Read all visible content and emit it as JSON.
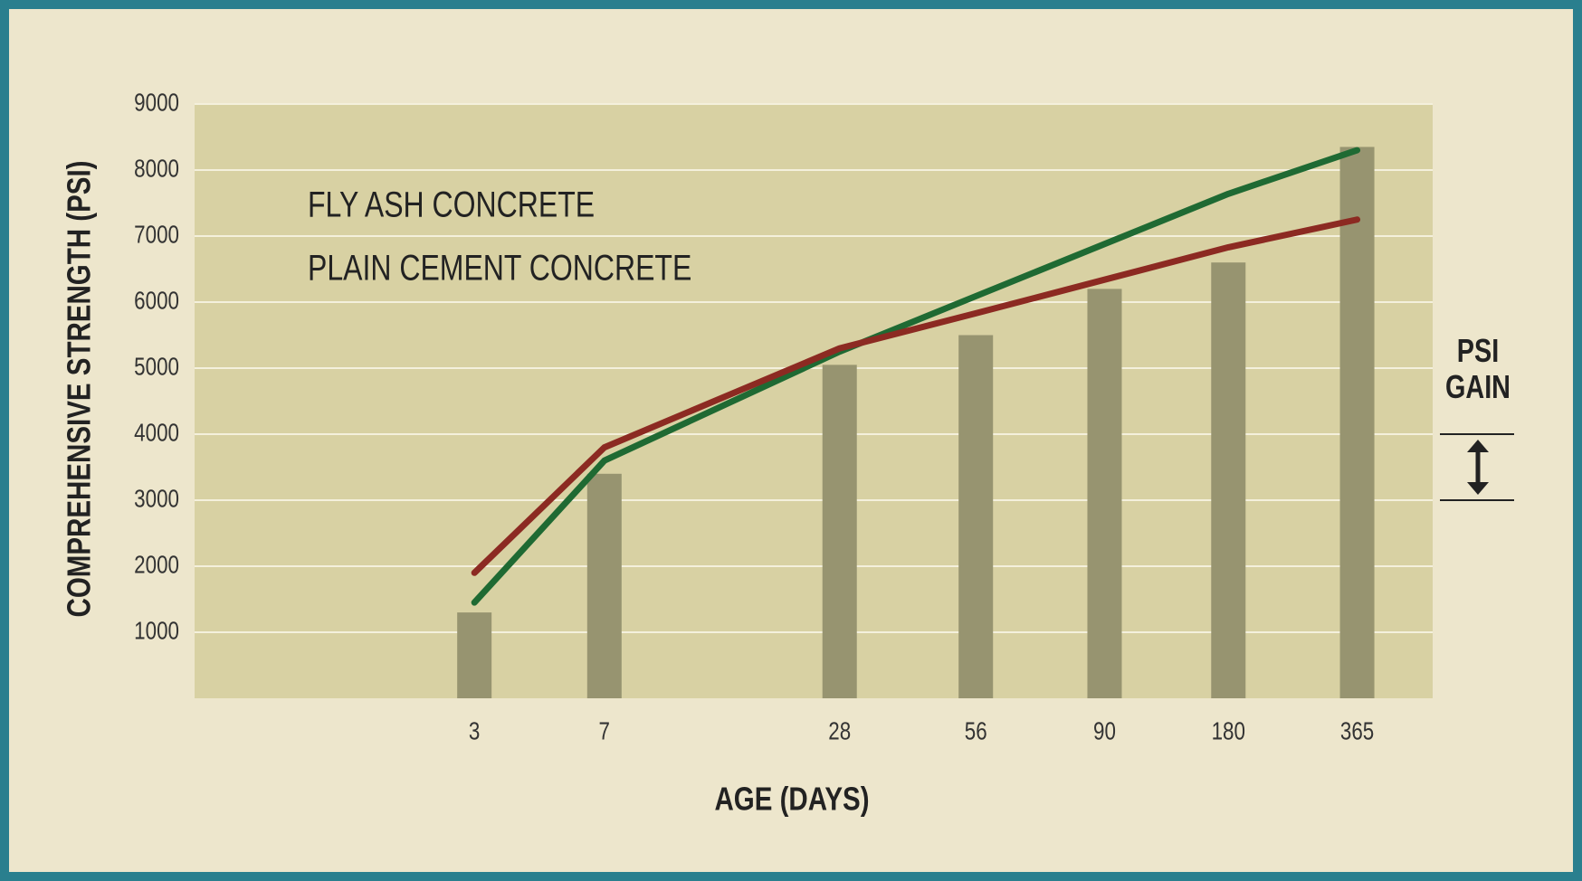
{
  "chart_data": {
    "type": "bar_line",
    "x_label": "AGE (DAYS)",
    "y_label": "COMPREHENSIVE STRENGTH (PSI)",
    "annotation": "PSI GAIN",
    "categories": [
      "3",
      "7",
      "28",
      "56",
      "90",
      "180",
      "365"
    ],
    "series": [
      {
        "type": "bar",
        "color": "#979470",
        "values": [
          1300,
          3400,
          5050,
          5500,
          6200,
          6600,
          8350
        ]
      },
      {
        "type": "line",
        "name": "FLY ASH CONCRETE",
        "color": "#1f6a33",
        "values": [
          1450,
          3600,
          5250,
          6090,
          6880,
          7640,
          8300
        ]
      },
      {
        "type": "line",
        "name": "PLAIN CEMENT CONCRETE",
        "color": "#8c2a22",
        "values": [
          1900,
          3800,
          5300,
          5830,
          6340,
          6830,
          7250
        ]
      }
    ],
    "ylim": [
      0,
      9000
    ],
    "yticks": [
      1000,
      2000,
      3000,
      4000,
      5000,
      6000,
      7000,
      8000,
      9000
    ],
    "grid": true
  }
}
